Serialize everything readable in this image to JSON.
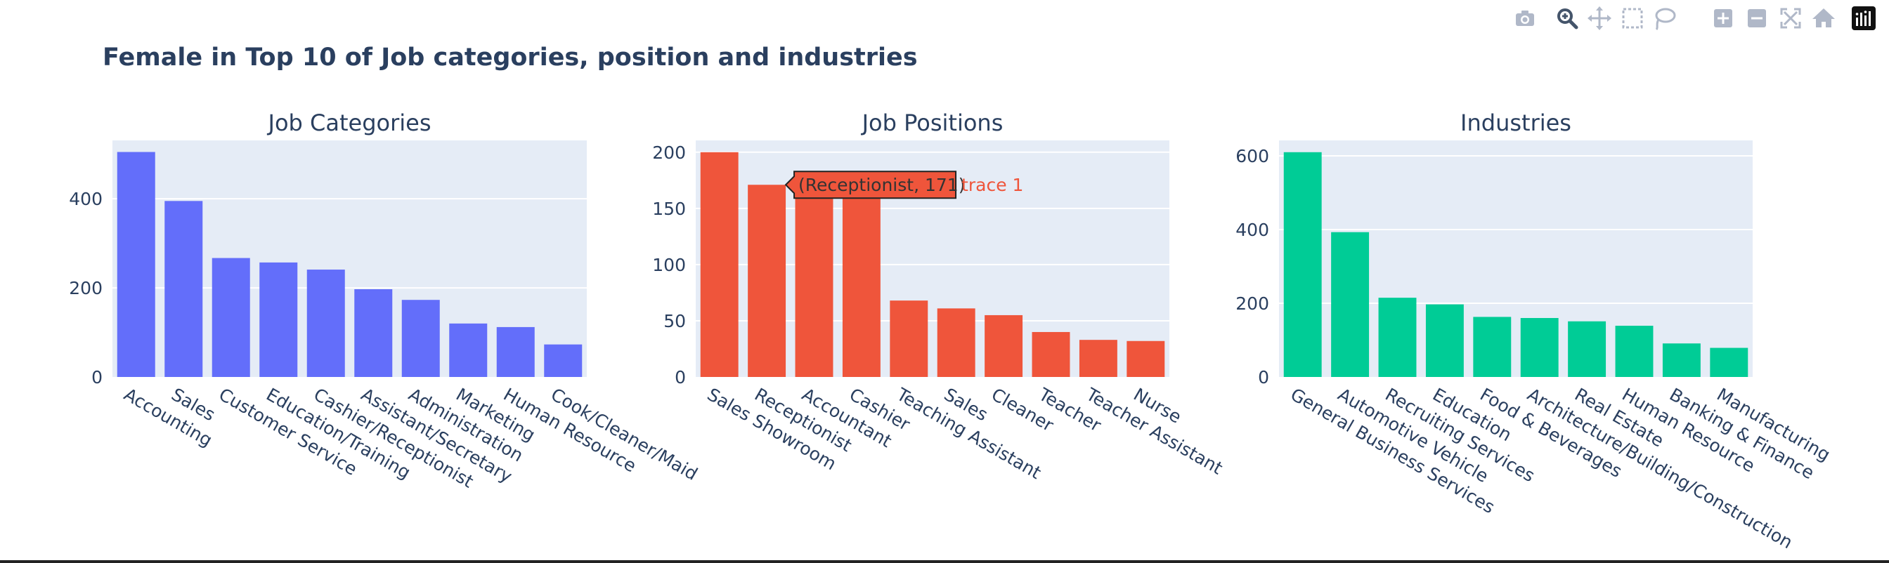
{
  "page": {
    "title": "Female in Top 10 of Job categories, position and industries"
  },
  "modebar": {
    "buttons": [
      {
        "name": "camera-icon",
        "label": "Download plot as a png"
      },
      {
        "name": "zoom-icon",
        "label": "Zoom"
      },
      {
        "name": "pan-icon",
        "label": "Pan"
      },
      {
        "name": "box-select-icon",
        "label": "Box Select"
      },
      {
        "name": "lasso-select-icon",
        "label": "Lasso Select"
      },
      {
        "name": "zoom-in-icon",
        "label": "Zoom in"
      },
      {
        "name": "zoom-out-icon",
        "label": "Zoom out"
      },
      {
        "name": "autoscale-icon",
        "label": "Autoscale"
      },
      {
        "name": "reset-axes-icon",
        "label": "Reset axes"
      },
      {
        "name": "plotly-logo-icon",
        "label": "Produced with Plotly"
      }
    ]
  },
  "colors": {
    "plot_bg": "#e5ecf6",
    "grid": "#ffffff",
    "text": "#2a3f5f",
    "modebar_icon": "#b0b8c8",
    "modebar_active": "#44546a"
  },
  "chart_data": [
    {
      "type": "bar",
      "title": "Job Categories",
      "color": "#636efa",
      "categories": [
        "Accounting",
        "Sales",
        "Customer Service",
        "Education/Training",
        "Cashier/Receptionist",
        "Assistant/Secretary",
        "Administration",
        "Marketing",
        "Human Resource",
        "Cook/Cleaner/Maid"
      ],
      "values": [
        505,
        395,
        267,
        257,
        241,
        197,
        173,
        120,
        112,
        73
      ],
      "yticks": [
        0,
        200,
        400
      ],
      "ylim": [
        0,
        531
      ],
      "grid": true
    },
    {
      "type": "bar",
      "title": "Job Positions",
      "color": "#ef553b",
      "categories": [
        "Sales Showroom",
        "Receptionist",
        "Accountant",
        "Cashier",
        "Teaching Assistant",
        "Sales",
        "Cleaner",
        "Teacher",
        "Teacher Assistant",
        "Nurse"
      ],
      "values": [
        200,
        171,
        170,
        168,
        68,
        61,
        55,
        40,
        33,
        32
      ],
      "yticks": [
        0,
        50,
        100,
        150,
        200
      ],
      "ylim": [
        0,
        210.5
      ],
      "grid": true,
      "hover": {
        "category": "Receptionist",
        "text": "(Receptionist, 171)",
        "series": "trace 1"
      }
    },
    {
      "type": "bar",
      "title": "Industries",
      "color": "#00cc96",
      "categories": [
        "General Business Services",
        "Automotive Vehicle",
        "Recruiting Services",
        "Education",
        "Food & Beverages",
        "Architecture/Building/Construction",
        "Real Estate",
        "Human Resource",
        "Banking & Finance",
        "Manufacturing"
      ],
      "values": [
        610,
        393,
        215,
        197,
        163,
        160,
        151,
        139,
        91,
        79
      ],
      "yticks": [
        0,
        200,
        400,
        600
      ],
      "ylim": [
        0,
        642
      ],
      "grid": true
    }
  ]
}
